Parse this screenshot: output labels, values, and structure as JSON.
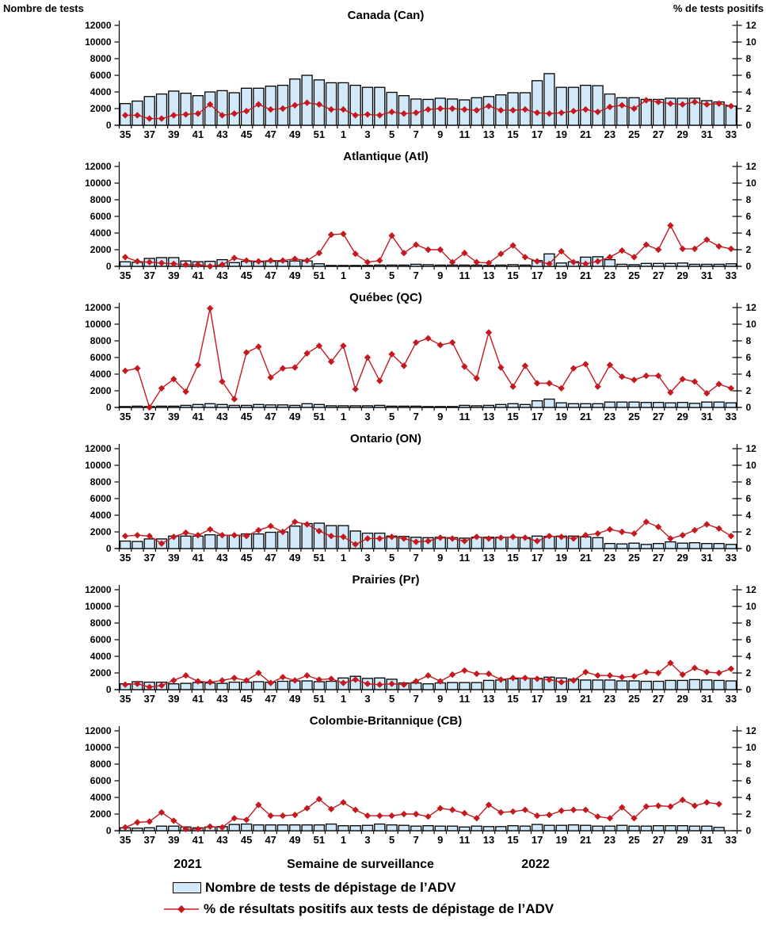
{
  "footer": {
    "year_left": "2021",
    "xlabel": "Semaine de surveillance",
    "year_right": "2022"
  },
  "legend": [
    {
      "type": "bar",
      "label": "Nombre de tests de dépistage de l’ADV"
    },
    {
      "type": "line",
      "label": "% de résultats positifs aux tests de dépistage de l’ADV"
    }
  ],
  "colors": {
    "bar_fill": "#D2E9FA",
    "bar_stroke": "#000000",
    "line": "#C4191F"
  },
  "chart_data": {
    "type": "bar",
    "subtype": "combo-bar-line-small-multiples",
    "left_axis": {
      "label": "Nombre de tests",
      "ticks": [
        0,
        2000,
        4000,
        6000,
        8000,
        10000,
        12000
      ],
      "lim": [
        0,
        12000
      ]
    },
    "right_axis": {
      "label": "% de tests positifs",
      "ticks": [
        0,
        2,
        4,
        6,
        8,
        10,
        12
      ],
      "lim": [
        0,
        12
      ]
    },
    "categories": [
      35,
      36,
      37,
      38,
      39,
      40,
      41,
      42,
      43,
      44,
      45,
      46,
      47,
      48,
      49,
      50,
      51,
      52,
      1,
      2,
      3,
      4,
      5,
      6,
      7,
      8,
      9,
      10,
      11,
      12,
      13,
      14,
      15,
      16,
      17,
      18,
      19,
      20,
      21,
      22,
      23,
      24,
      25,
      26,
      27,
      28,
      29,
      30,
      31,
      32,
      33
    ],
    "x_tick_labels": [
      35,
      37,
      39,
      41,
      43,
      45,
      47,
      49,
      51,
      1,
      3,
      5,
      7,
      9,
      11,
      13,
      15,
      17,
      19,
      21,
      23,
      25,
      27,
      29,
      31,
      33
    ],
    "series_names": [
      "Nombre de tests de dépistage de l’ADV",
      "% de résultats positifs aux tests de dépistage de l’ADV"
    ],
    "panels": [
      {
        "abbr": "can",
        "title": "Canada (Can)",
        "bar_values": [
          2600,
          2900,
          3450,
          3750,
          4100,
          3850,
          3550,
          4000,
          4150,
          3900,
          4450,
          4450,
          4700,
          4800,
          5550,
          6000,
          5450,
          5100,
          5100,
          4800,
          4550,
          4550,
          3950,
          3550,
          3150,
          3100,
          3250,
          3150,
          3050,
          3300,
          3450,
          3650,
          3900,
          3900,
          5350,
          6200,
          4550,
          4550,
          4800,
          4750,
          3750,
          3300,
          3300,
          3100,
          3100,
          3250,
          3250,
          3250,
          2950,
          2800,
          2300
        ],
        "line_values": [
          1.2,
          1.2,
          0.8,
          0.8,
          1.2,
          1.3,
          1.4,
          2.5,
          1.2,
          1.4,
          1.7,
          2.5,
          1.9,
          2.0,
          2.4,
          2.7,
          2.5,
          1.9,
          1.9,
          1.2,
          1.3,
          1.2,
          1.6,
          1.4,
          1.5,
          1.9,
          2.0,
          2.0,
          1.9,
          1.8,
          2.3,
          1.8,
          1.8,
          1.9,
          1.5,
          1.4,
          1.5,
          1.7,
          1.9,
          1.6,
          2.2,
          2.4,
          2.0,
          3.0,
          2.8,
          2.6,
          2.5,
          2.8,
          2.5,
          2.6,
          2.3
        ]
      },
      {
        "abbr": "atl",
        "title": "Atlantique (Atl)",
        "bar_values": [
          550,
          500,
          950,
          1050,
          1050,
          650,
          550,
          600,
          800,
          450,
          600,
          550,
          600,
          600,
          650,
          650,
          300,
          100,
          100,
          100,
          100,
          150,
          150,
          150,
          250,
          200,
          150,
          150,
          150,
          150,
          100,
          150,
          200,
          150,
          700,
          1500,
          400,
          550,
          1100,
          1150,
          800,
          250,
          200,
          350,
          350,
          350,
          400,
          250,
          250,
          250,
          300
        ],
        "line_values": [
          1.1,
          0.6,
          0.5,
          0.4,
          0.3,
          0.2,
          0.2,
          0.0,
          0.2,
          1.0,
          0.7,
          0.6,
          0.7,
          0.7,
          0.9,
          0.7,
          1.6,
          3.8,
          3.9,
          1.5,
          0.5,
          0.7,
          3.7,
          1.6,
          2.6,
          2.0,
          2.0,
          0.5,
          1.6,
          0.5,
          0.4,
          1.5,
          2.5,
          1.1,
          0.6,
          0.3,
          1.8,
          0.5,
          0.3,
          0.6,
          1.1,
          1.9,
          1.1,
          2.6,
          2.0,
          4.9,
          2.1,
          2.1,
          3.2,
          2.4,
          2.1
        ]
      },
      {
        "abbr": "qc",
        "title": "Québec (QC)",
        "bar_values": [
          100,
          150,
          100,
          150,
          150,
          250,
          350,
          450,
          350,
          250,
          250,
          350,
          300,
          300,
          250,
          450,
          350,
          200,
          200,
          200,
          200,
          250,
          150,
          150,
          150,
          100,
          100,
          100,
          250,
          200,
          250,
          350,
          450,
          350,
          800,
          1000,
          550,
          450,
          450,
          450,
          650,
          650,
          650,
          600,
          600,
          550,
          600,
          500,
          650,
          650,
          550
        ],
        "line_values": [
          4.4,
          4.7,
          0.0,
          2.3,
          3.4,
          1.9,
          5.1,
          11.9,
          3.1,
          1.0,
          6.6,
          7.3,
          3.6,
          4.7,
          4.8,
          6.5,
          7.4,
          5.5,
          7.4,
          2.2,
          6.0,
          3.2,
          6.4,
          5.0,
          7.8,
          8.3,
          7.5,
          7.8,
          4.9,
          3.5,
          9.0,
          4.8,
          2.5,
          5.0,
          2.9,
          2.9,
          2.3,
          4.7,
          5.2,
          2.5,
          5.1,
          3.7,
          3.3,
          3.8,
          3.8,
          1.8,
          3.4,
          3.1,
          1.7,
          2.8,
          2.3
        ]
      },
      {
        "abbr": "on",
        "title": "Ontario (ON)",
        "bar_values": [
          900,
          850,
          1150,
          1150,
          1500,
          1500,
          1500,
          1650,
          1600,
          1600,
          1750,
          1750,
          1950,
          2000,
          2700,
          3000,
          3050,
          2750,
          2750,
          2100,
          1850,
          1850,
          1500,
          1450,
          1350,
          1300,
          1350,
          1300,
          1250,
          1350,
          1350,
          1350,
          1350,
          1300,
          1500,
          1450,
          1500,
          1500,
          1400,
          1300,
          600,
          550,
          650,
          500,
          600,
          800,
          650,
          700,
          600,
          600,
          500
        ],
        "line_values": [
          1.5,
          1.6,
          1.5,
          0.6,
          1.4,
          1.9,
          1.6,
          2.3,
          1.6,
          1.6,
          1.5,
          2.2,
          2.7,
          2.0,
          3.2,
          2.9,
          2.1,
          1.5,
          1.4,
          0.5,
          1.2,
          1.2,
          1.4,
          1.2,
          0.8,
          0.9,
          1.3,
          1.2,
          0.9,
          1.4,
          1.2,
          1.3,
          1.4,
          1.3,
          0.9,
          1.5,
          1.4,
          1.2,
          1.6,
          1.8,
          2.3,
          2.0,
          1.8,
          3.2,
          2.6,
          1.2,
          1.6,
          2.2,
          2.9,
          2.4,
          1.5
        ]
      },
      {
        "abbr": "pr",
        "title": "Prairies (Pr)",
        "bar_values": [
          700,
          950,
          900,
          900,
          700,
          750,
          850,
          800,
          750,
          900,
          900,
          950,
          900,
          1000,
          1050,
          1050,
          950,
          1000,
          1400,
          1600,
          1350,
          1400,
          1250,
          800,
          800,
          700,
          800,
          850,
          850,
          850,
          1100,
          1150,
          1300,
          1350,
          1350,
          1500,
          1400,
          1250,
          1150,
          1150,
          1150,
          1050,
          1050,
          1000,
          1000,
          1100,
          1100,
          1200,
          1150,
          1100,
          1050
        ],
        "line_values": [
          0.6,
          0.7,
          0.3,
          0.5,
          1.1,
          1.7,
          1.0,
          0.9,
          1.1,
          1.4,
          1.1,
          2.0,
          0.8,
          1.5,
          1.1,
          1.7,
          1.2,
          1.3,
          0.8,
          1.2,
          0.7,
          0.6,
          0.7,
          0.6,
          1.0,
          1.7,
          1.0,
          1.8,
          2.3,
          1.9,
          1.9,
          1.2,
          1.4,
          1.4,
          1.3,
          1.2,
          0.9,
          1.1,
          2.1,
          1.7,
          1.7,
          1.5,
          1.6,
          2.1,
          2.0,
          3.2,
          1.8,
          2.6,
          2.1,
          2.0,
          2.5
        ]
      },
      {
        "abbr": "cb",
        "title": "Colombie-Britannique (CB)",
        "bar_values": [
          350,
          300,
          350,
          550,
          550,
          450,
          350,
          450,
          500,
          750,
          800,
          700,
          700,
          700,
          700,
          700,
          700,
          800,
          600,
          600,
          650,
          800,
          700,
          650,
          550,
          600,
          550,
          550,
          450,
          550,
          500,
          500,
          600,
          550,
          750,
          650,
          650,
          700,
          650,
          550,
          550,
          650,
          550,
          550,
          600,
          600,
          600,
          550,
          550,
          400,
          null
        ],
        "line_values": [
          0.4,
          1.0,
          1.1,
          2.2,
          1.2,
          0.2,
          0.2,
          0.5,
          0.4,
          1.5,
          1.3,
          3.1,
          1.8,
          1.8,
          1.9,
          2.7,
          3.8,
          2.6,
          3.4,
          2.5,
          1.8,
          1.8,
          1.8,
          2.0,
          2.0,
          1.7,
          2.7,
          2.5,
          2.1,
          1.5,
          3.1,
          2.2,
          2.3,
          2.5,
          1.8,
          1.9,
          2.4,
          2.5,
          2.5,
          1.7,
          1.5,
          2.8,
          1.5,
          2.9,
          3.0,
          2.9,
          3.7,
          3.0,
          3.4,
          3.2,
          null
        ]
      }
    ]
  }
}
